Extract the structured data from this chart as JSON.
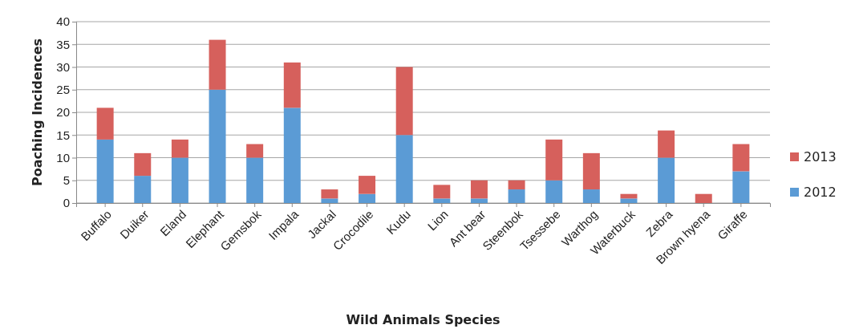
{
  "chart_data": {
    "type": "bar",
    "stacked": true,
    "xlabel": "Wild Animals Species",
    "ylabel": "Poaching Incidences",
    "categories": [
      "Buffalo",
      "Duiker",
      "Eland",
      "Elephant",
      "Gemsbok",
      "Impala",
      "Jackal",
      "Crocodile",
      "Kudu",
      "Lion",
      "Ant bear",
      "Steenbok",
      "Tsessebe",
      "Warthog",
      "Waterbuck",
      "Zebra",
      "Brown hyena",
      "Giraffe"
    ],
    "series": [
      {
        "name": "2012",
        "color": "#5b9bd5",
        "values": [
          14,
          6,
          10,
          25,
          10,
          21,
          1,
          2,
          15,
          1,
          1,
          3,
          5,
          3,
          1,
          10,
          0,
          7
        ]
      },
      {
        "name": "2013",
        "color": "#d6605c",
        "values": [
          7,
          5,
          4,
          11,
          3,
          10,
          2,
          4,
          15,
          3,
          4,
          2,
          9,
          8,
          1,
          6,
          2,
          6
        ]
      }
    ],
    "ylim": [
      0,
      40
    ],
    "yticks": [
      0,
      5,
      10,
      15,
      20,
      25,
      30,
      35,
      40
    ],
    "grid": "y",
    "legend": "right"
  }
}
